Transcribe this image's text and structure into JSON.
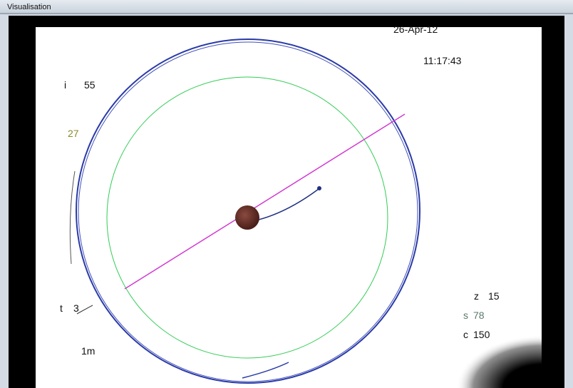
{
  "window": {
    "title": "Visualisation"
  },
  "overlay": {
    "date": "26-Apr-12",
    "time": "11:17:43",
    "left": [
      {
        "key": "i",
        "value": "55"
      },
      {
        "value": "27"
      },
      {
        "key": "t",
        "value": "3"
      },
      {
        "value": "1m"
      }
    ],
    "right": [
      {
        "key": "z",
        "value": "15"
      },
      {
        "key": "s",
        "value": "78"
      },
      {
        "key": "c",
        "value": "150"
      }
    ]
  }
}
